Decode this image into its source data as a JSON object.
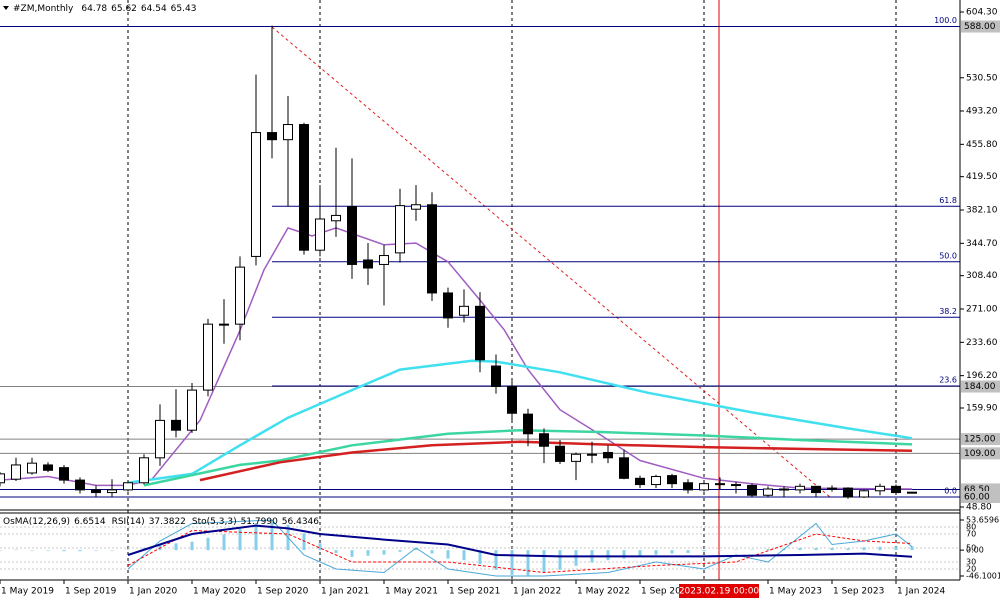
{
  "chart_data": {
    "type": "candlestick",
    "title": "#ZM,Monthly",
    "categories": [
      "1 May 2019",
      null,
      null,
      null,
      "1 Sep 2019",
      null,
      null,
      null,
      "1 Jan 2020",
      null,
      null,
      null,
      "1 May 2020",
      null,
      null,
      null,
      "1 Sep 2020",
      null,
      null,
      null,
      "1 Jan 2021",
      null,
      null,
      null,
      "1 May 2021",
      null,
      null,
      null,
      "1 Sep 2021",
      null,
      null,
      null,
      "1 Jan 2022",
      null,
      null,
      null,
      "1 May 2022",
      null,
      null,
      null,
      "1 Sep 2022",
      null,
      null,
      null,
      null,
      null,
      null,
      null,
      "1 May 2023",
      null,
      null,
      null,
      "1 Sep 2023",
      null,
      null,
      null,
      "1 Jan 2024",
      null
    ],
    "open": [
      76,
      80,
      87,
      96,
      93,
      79,
      68,
      65,
      68,
      76,
      104,
      146,
      135,
      180,
      254,
      254,
      330,
      469,
      461,
      478,
      337,
      370,
      386,
      326,
      321,
      334,
      383,
      388,
      289,
      264,
      274,
      207,
      184,
      153,
      131,
      117,
      100,
      108,
      110,
      104,
      81,
      74,
      84,
      76,
      68,
      75,
      74,
      73,
      62,
      69,
      68,
      72,
      70,
      70,
      60,
      67,
      72,
      64.78
    ],
    "high": [
      88,
      104,
      104,
      99,
      96,
      82,
      73,
      80,
      78,
      108,
      164,
      181,
      188,
      260,
      282,
      330,
      534,
      589,
      510,
      480,
      410,
      452,
      440,
      345,
      343,
      406,
      410,
      402,
      295,
      293,
      290,
      220,
      190,
      159,
      137,
      124,
      110,
      122,
      118,
      113,
      84,
      85,
      86,
      80,
      78,
      82,
      77,
      75,
      72,
      72,
      75,
      72,
      73,
      71,
      68,
      75,
      74,
      65.62
    ],
    "low": [
      72,
      78,
      85,
      88,
      75,
      64,
      60,
      60,
      66,
      74,
      95,
      127,
      132,
      173,
      232,
      236,
      320,
      440,
      386,
      332,
      330,
      352,
      305,
      298,
      275,
      323,
      370,
      280,
      250,
      256,
      200,
      176,
      146,
      117,
      98,
      97,
      79,
      98,
      98,
      80,
      70,
      70,
      70,
      64,
      66,
      69,
      64,
      60,
      60,
      60,
      64,
      60,
      66,
      58,
      59,
      62,
      63,
      64.54
    ],
    "close": [
      86,
      96,
      98,
      90,
      79,
      68,
      65,
      68,
      76,
      104,
      146,
      135,
      180,
      254,
      254,
      318,
      469,
      461,
      478,
      337,
      372,
      376,
      321,
      317,
      331,
      387,
      388,
      289,
      261,
      274,
      214,
      184,
      154,
      131,
      117,
      100,
      108,
      108,
      104,
      81,
      74,
      83,
      75,
      68,
      75,
      74,
      74,
      62,
      69,
      68,
      72,
      65,
      70,
      60,
      67,
      72,
      65,
      65.43
    ],
    "up_color": "#ffffff",
    "down_color": "#000000",
    "ylim": [
      48.8,
      604.3
    ],
    "yticks": [
      {
        "value": 604.3,
        "label": "604.30"
      },
      {
        "value": 530.5,
        "label": "530.50"
      },
      {
        "value": 493.2,
        "label": "493.20"
      },
      {
        "value": 455.8,
        "label": "455.80"
      },
      {
        "value": 419.5,
        "label": "419.50"
      },
      {
        "value": 382.1,
        "label": "382.10"
      },
      {
        "value": 344.7,
        "label": "344.70"
      },
      {
        "value": 308.4,
        "label": "308.40"
      },
      {
        "value": 271,
        "label": "271.00"
      },
      {
        "value": 233.6,
        "label": "233.60"
      },
      {
        "value": 196.2,
        "label": "196.20"
      },
      {
        "value": 159.9,
        "label": "159.90"
      },
      {
        "value": 48.8,
        "label": "48.80"
      }
    ],
    "hlines": [
      {
        "value": 588,
        "label": "588.00"
      },
      {
        "value": 184,
        "label": "184.00"
      },
      {
        "value": 125,
        "label": "125.00"
      },
      {
        "value": 109,
        "label": "109.00"
      },
      {
        "value": 68.5,
        "label": "68.50"
      },
      {
        "value": 60,
        "label": "60.00"
      }
    ],
    "hline_colors": [
      "#000080",
      "#808080",
      "#808080",
      "#808080",
      "#000080",
      "#000080"
    ],
    "fib": {
      "levels": [
        "100.0",
        "61.8",
        "50.0",
        "38.2",
        "23.6",
        "0.0"
      ],
      "prices": [
        588,
        386.3,
        324,
        261.7,
        184.6,
        60
      ],
      "color": "#000080"
    },
    "moving_averages": [
      {
        "color": "#a05cc0",
        "x": [
          0,
          3,
          6,
          8,
          9.5,
          12.5,
          15,
          16.5,
          18,
          19.5,
          21,
          24,
          26,
          28,
          30,
          31.5,
          33,
          35,
          37.5,
          40,
          44,
          47,
          50,
          57
        ],
        "values": [
          79,
          83,
          73,
          73,
          80,
          146,
          247,
          315,
          362,
          353,
          362,
          343,
          345,
          324,
          281,
          248,
          203,
          158,
          130,
          101,
          81,
          75,
          70,
          69
        ]
      },
      {
        "color": "#40e0f0",
        "x": [
          8,
          12,
          15,
          18,
          22,
          25,
          29.5,
          31,
          35,
          40.5,
          47,
          53,
          57
        ],
        "values": [
          76,
          86,
          118,
          149,
          180,
          203,
          213,
          212,
          200,
          177,
          155,
          137,
          126
        ]
      },
      {
        "color": "#3cd6a0",
        "x": [
          9,
          15,
          17.5,
          22,
          28,
          32.5,
          37.5,
          44,
          50,
          57
        ],
        "values": [
          73,
          96,
          101,
          118,
          131,
          135,
          133,
          129,
          124,
          119
        ]
      },
      {
        "color": "#d42020",
        "x": [
          12.5,
          17.5,
          22,
          27,
          32.5,
          37.5,
          44,
          50,
          57
        ],
        "values": [
          79,
          99,
          110,
          118,
          122,
          119,
          116,
          114,
          112
        ]
      }
    ],
    "crosshair_label": "2023.02.19 00:00",
    "indicators": {
      "osma": {
        "name": "OsMA(12,26,9)",
        "color": "#87ceeb",
        "ylim": [
          -46.1001,
          53.6596
        ],
        "yticks": [
          53.6596,
          {
            "value": 0,
            "label": "0.00"
          },
          -46.1001
        ],
        "values": [
          0,
          1,
          0,
          -1,
          -2,
          -2,
          -1,
          0,
          1,
          4,
          10,
          12,
          15,
          22,
          28,
          38,
          48,
          50,
          45,
          30,
          12,
          -5,
          -12,
          -10,
          -8,
          -3,
          2,
          -6,
          -15,
          -18,
          -25,
          -35,
          -44,
          -45,
          -40,
          -35,
          -28,
          -22,
          -18,
          -15,
          -12,
          -8,
          -6,
          -5,
          -2,
          0,
          1,
          1,
          2,
          3,
          4,
          4,
          4,
          3,
          5,
          6,
          6,
          6.6514
        ]
      },
      "osc_ylim": [
        0,
        100
      ],
      "osc_yticks": [
        80,
        70,
        50,
        30,
        20
      ],
      "rsi": {
        "name": "RSI(14)",
        "color": "#00008b",
        "x": [
          8,
          12,
          16,
          18,
          20,
          24,
          28,
          31,
          35,
          44,
          50,
          54,
          57
        ],
        "values": [
          40,
          70,
          82,
          78,
          70,
          62,
          55,
          40,
          38,
          38,
          40,
          42,
          37.3822
        ]
      },
      "stochastic": {
        "name": "Sto(5,3,3)",
        "series": [
          {
            "color": "#4aa8d8",
            "x": [
              8,
              10,
              12,
              17,
              19,
              21,
              24,
              26,
              28,
              31,
              34,
              38,
              41,
              44,
              46,
              48,
              51,
              52,
              54,
              56,
              57
            ],
            "values": [
              20,
              60,
              85,
              90,
              40,
              20,
              15,
              50,
              20,
              10,
              10,
              15,
              30,
              20,
              40,
              30,
              85,
              55,
              60,
              70,
              51.799
            ],
            "value_labels": [
              null,
              null,
              null,
              null,
              null,
              null,
              null,
              null,
              null,
              null,
              null,
              null,
              null,
              null,
              null,
              null,
              null,
              null,
              null,
              null,
              "51.7990"
            ]
          },
          {
            "color": "#ff0000",
            "x": [
              8,
              12,
              18,
              22,
              28,
              34,
              41,
              46,
              51,
              54,
              57
            ],
            "values": [
              25,
              75,
              70,
              30,
              30,
              15,
              25,
              30,
              70,
              60,
              56.4346
            ]
          }
        ]
      }
    }
  }
}
